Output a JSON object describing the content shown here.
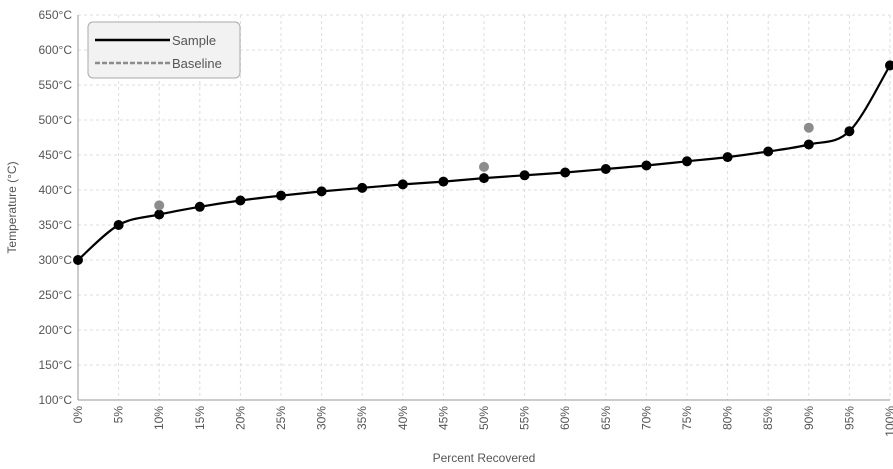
{
  "chart_data": {
    "type": "line",
    "title": "",
    "xlabel": "Percent Recovered",
    "ylabel": "Temperature (°C)",
    "x_ticks": [
      "0%",
      "5%",
      "10%",
      "15%",
      "20%",
      "25%",
      "30%",
      "35%",
      "40%",
      "45%",
      "50%",
      "55%",
      "60%",
      "65%",
      "70%",
      "75%",
      "80%",
      "85%",
      "90%",
      "95%",
      "100%"
    ],
    "y_ticks": [
      "650°C",
      "600°C",
      "550°C",
      "500°C",
      "450°C",
      "400°C",
      "350°C",
      "300°C",
      "250°C",
      "200°C",
      "150°C",
      "100°C"
    ],
    "xlim": [
      0,
      100
    ],
    "ylim": [
      100,
      650
    ],
    "grid": true,
    "legend_position": "top-left",
    "series": [
      {
        "name": "Sample",
        "color": "#000000",
        "style": "solid",
        "x": [
          0,
          5,
          10,
          15,
          20,
          25,
          30,
          35,
          40,
          45,
          50,
          55,
          60,
          65,
          70,
          75,
          80,
          85,
          90,
          95,
          100
        ],
        "values": [
          300,
          350,
          365,
          376,
          385,
          392,
          398,
          403,
          408,
          412,
          417,
          421,
          425,
          430,
          435,
          441,
          447,
          455,
          465,
          484,
          578
        ]
      },
      {
        "name": "Baseline",
        "color": "#8c8c8c",
        "style": "dashed",
        "x": [
          10,
          50,
          90
        ],
        "values": [
          378,
          433,
          489
        ]
      }
    ]
  }
}
